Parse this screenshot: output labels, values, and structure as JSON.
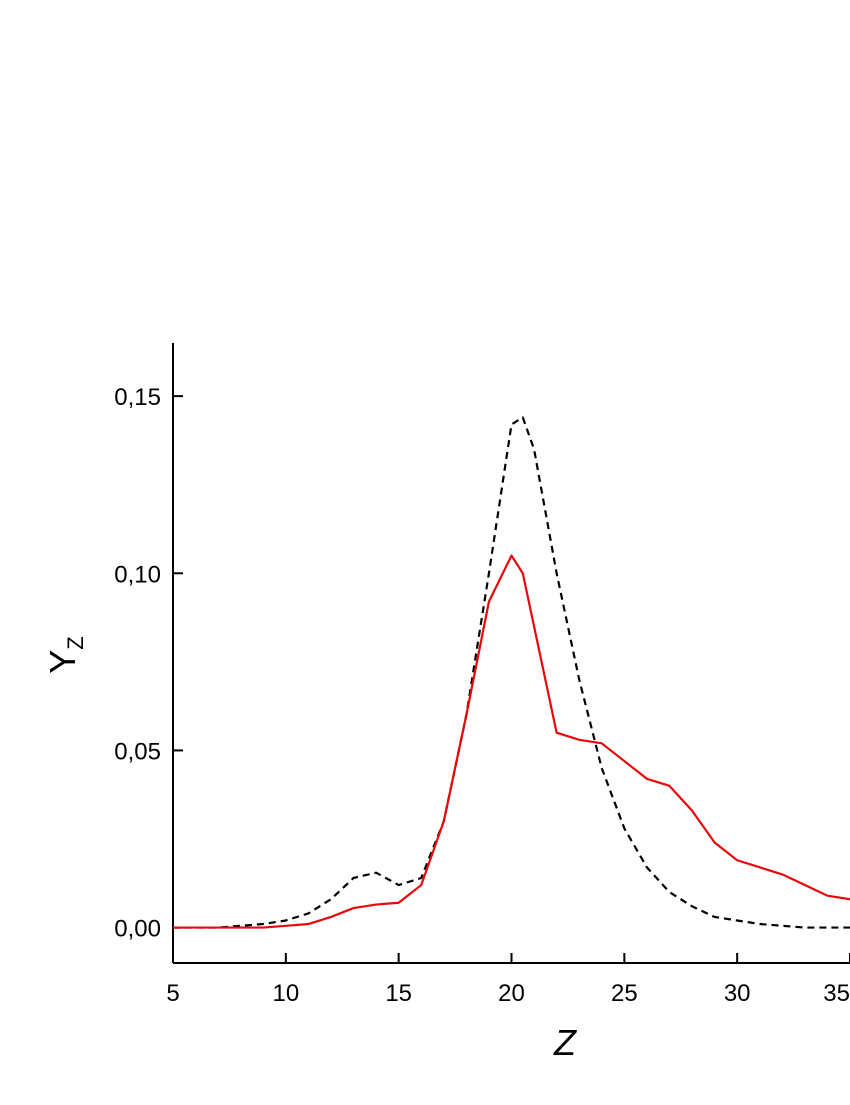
{
  "chart_data": {
    "type": "line",
    "x_label": "Z",
    "y_label": "Y",
    "y_label_subscript": "Z",
    "x": [
      5,
      6,
      7,
      8,
      9,
      10,
      11,
      12,
      13,
      14,
      15,
      16,
      17,
      18,
      19,
      20,
      20.5,
      21,
      22,
      23,
      24,
      25,
      26,
      27,
      28,
      29,
      30,
      31,
      32,
      33,
      34,
      35
    ],
    "series": [
      {
        "color": "#000000",
        "dash": true,
        "values": [
          0,
          0,
          0,
          0.0005,
          0.001,
          0.002,
          0.004,
          0.008,
          0.014,
          0.0155,
          0.012,
          0.014,
          0.03,
          0.06,
          0.1,
          0.142,
          0.144,
          0.135,
          0.1,
          0.07,
          0.045,
          0.028,
          0.017,
          0.01,
          0.006,
          0.003,
          0.002,
          0.001,
          0.0005,
          0,
          0,
          0
        ]
      },
      {
        "color": "#e8080b",
        "dash": false,
        "values": [
          0,
          0,
          0,
          0,
          0,
          0.0005,
          0.001,
          0.003,
          0.0055,
          0.0065,
          0.007,
          0.012,
          0.03,
          0.06,
          0.092,
          0.105,
          0.1,
          0.085,
          0.055,
          0.053,
          0.052,
          0.047,
          0.042,
          0.04,
          0.033,
          0.024,
          0.019,
          0.017,
          0.015,
          0.012,
          0.009,
          0.008
        ]
      }
    ],
    "xlim": [
      5,
      35
    ],
    "xticks": [
      5,
      10,
      15,
      20,
      25,
      30,
      35
    ],
    "ylim": [
      -0.01,
      0.165
    ],
    "yticks": [
      {
        "value": 0,
        "label": "0,00"
      },
      {
        "value": 0.05,
        "label": "0,05"
      },
      {
        "value": 0.1,
        "label": "0,10"
      },
      {
        "value": 0.15,
        "label": "0,15"
      }
    ]
  }
}
